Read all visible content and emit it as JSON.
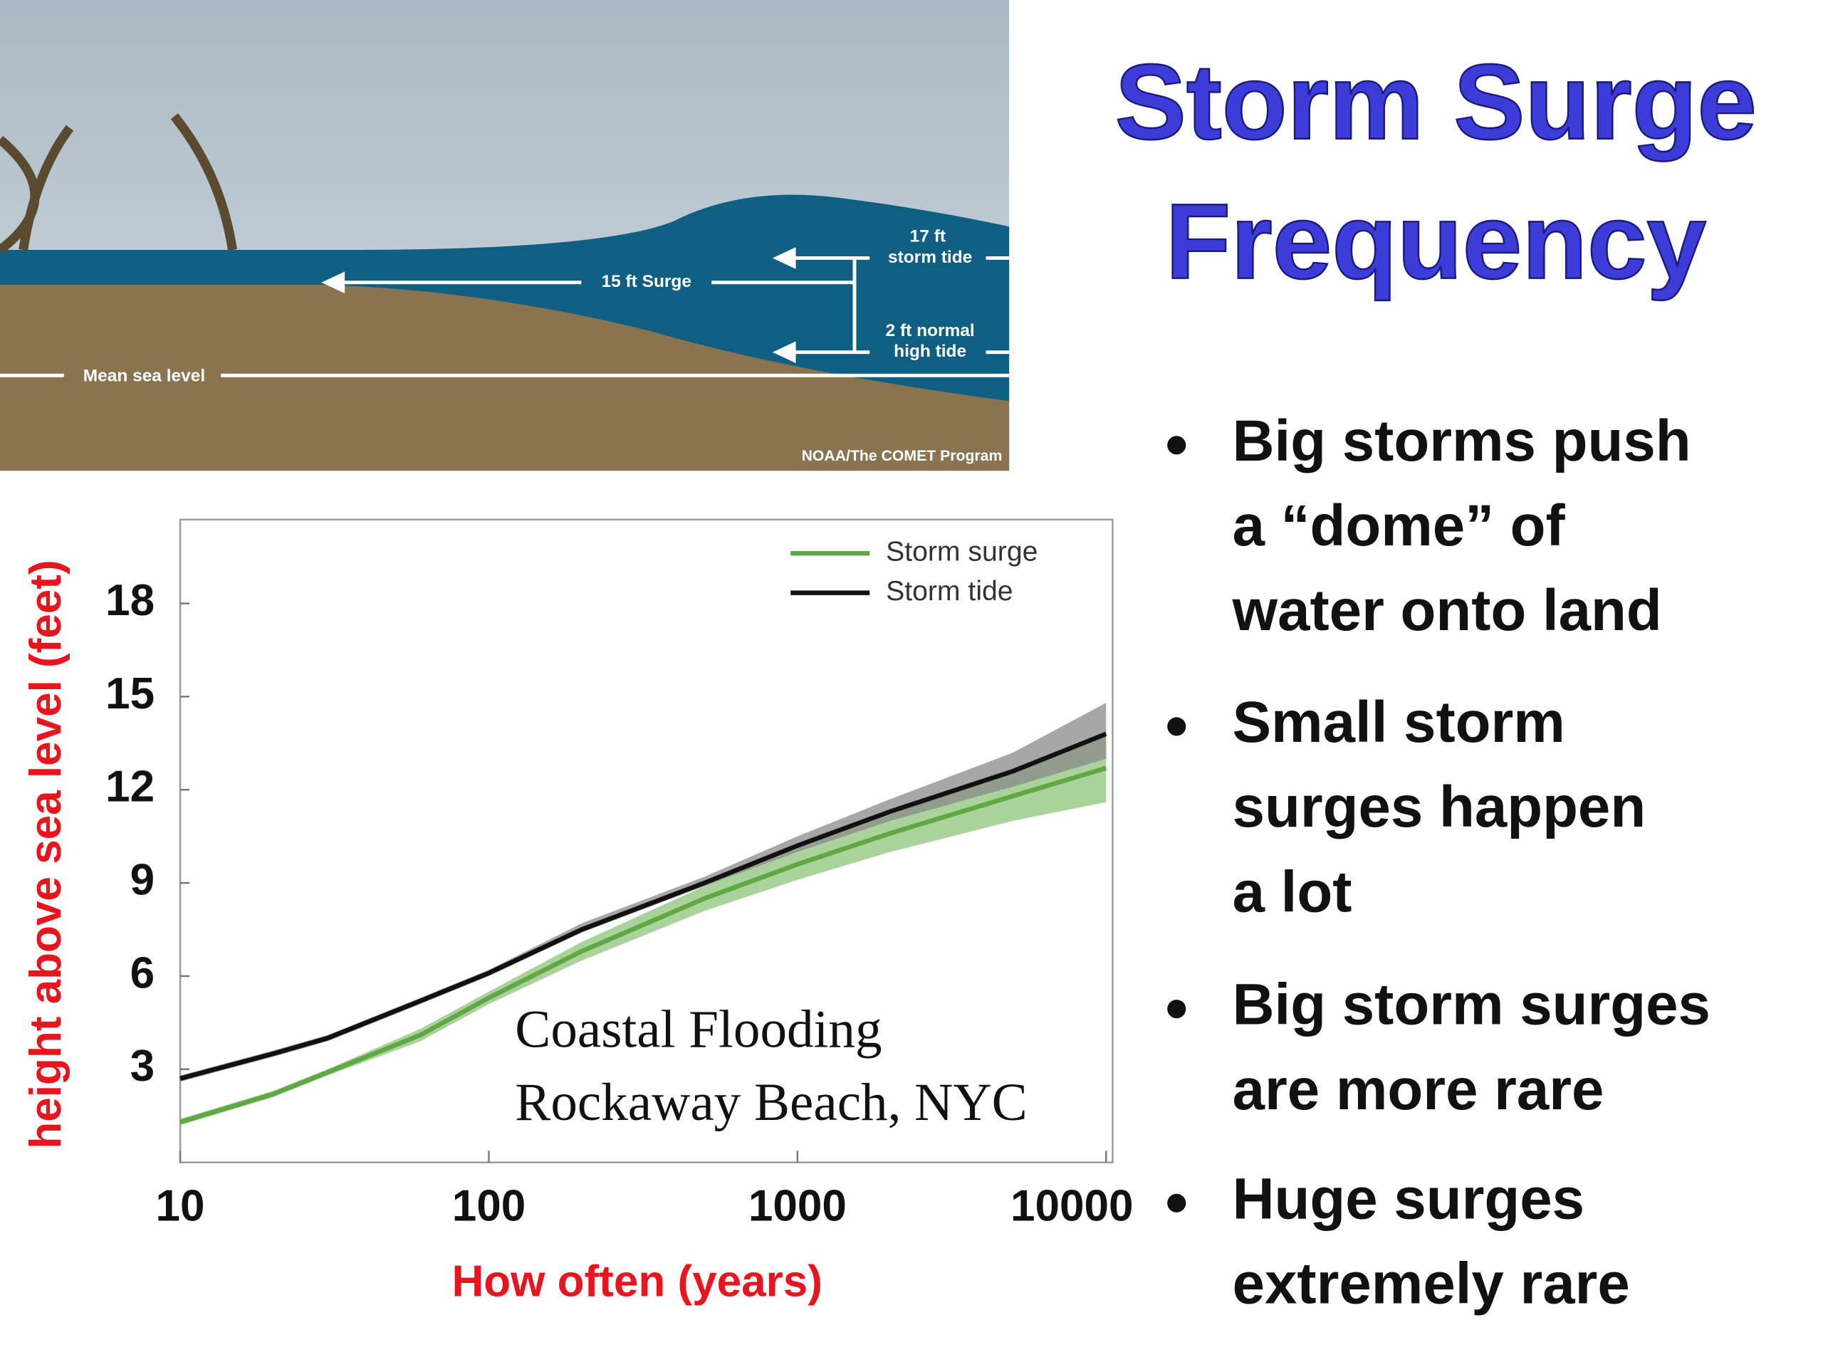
{
  "title": [
    "Storm Surge",
    "Frequency"
  ],
  "bullets": [
    [
      "Big storms push",
      "a “dome” of",
      "water onto land"
    ],
    [
      "Small storm",
      "surges happen",
      "a lot"
    ],
    [
      "Big storm surges",
      "are more rare"
    ],
    [
      "Huge surges",
      "extremely rare"
    ]
  ],
  "diagram": {
    "labels": [
      "17 ft",
      "storm tide",
      "15 ft Surge",
      "2 ft normal",
      "high tide",
      "Mean sea level"
    ],
    "credit": "NOAA/The COMET Program"
  },
  "chart_data": {
    "type": "line",
    "xscale": "log",
    "xlabel": "How often (years)",
    "ylabel": "height above sea level (feet)",
    "annotation": [
      "Coastal Flooding",
      "Rockaway Beach, NYC"
    ],
    "legend": "upper right",
    "x": [
      10,
      20,
      30,
      60,
      100,
      200,
      500,
      1000,
      2000,
      5000,
      10000
    ],
    "series": [
      {
        "name": "Storm surge",
        "color": "#5fa844",
        "band_color": "#8cc47a",
        "values": [
          1.3,
          2.2,
          2.9,
          4.1,
          5.3,
          6.8,
          8.5,
          9.6,
          10.6,
          11.8,
          12.7
        ],
        "lower": [
          1.2,
          2.1,
          2.8,
          3.9,
          5.1,
          6.5,
          8.1,
          9.1,
          10.0,
          11.0,
          11.6
        ],
        "upper": [
          1.4,
          2.3,
          3.0,
          4.3,
          5.5,
          7.1,
          8.9,
          10.1,
          11.2,
          12.6,
          13.8
        ]
      },
      {
        "name": "Storm tide",
        "color": "#111111",
        "band_color": "#8a8a8a",
        "values": [
          2.7,
          3.5,
          4.0,
          5.2,
          6.1,
          7.5,
          9.0,
          10.2,
          11.3,
          12.6,
          13.8
        ],
        "lower": [
          2.6,
          3.4,
          3.9,
          5.1,
          6.0,
          7.4,
          8.9,
          10.0,
          11.0,
          12.1,
          13.0
        ],
        "upper": [
          2.8,
          3.6,
          4.1,
          5.3,
          6.2,
          7.7,
          9.2,
          10.5,
          11.7,
          13.2,
          14.8
        ]
      }
    ],
    "xlim": [
      10,
      10500
    ],
    "xticks": [
      10,
      100,
      1000,
      10000
    ],
    "ylim": [
      0,
      20.7
    ],
    "yticks": [
      3,
      6,
      9,
      12,
      15,
      18
    ]
  }
}
